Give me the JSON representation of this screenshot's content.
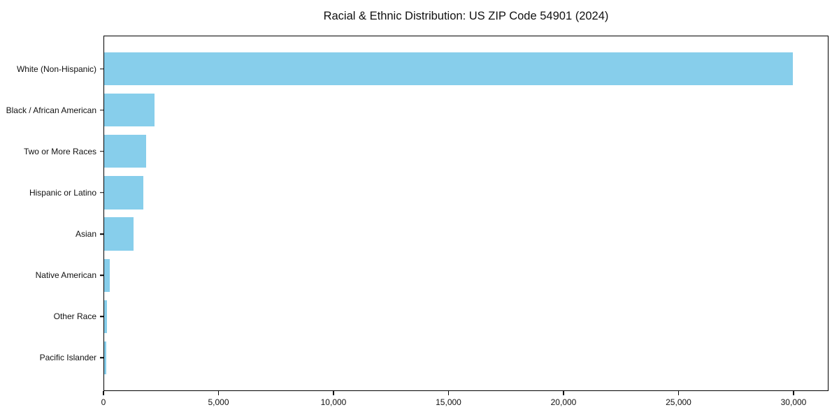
{
  "title": "Racial & Ethnic Distribution: US ZIP Code 54901 (2024)",
  "chart_data": {
    "type": "bar",
    "orientation": "horizontal",
    "title": "Racial & Ethnic Distribution: US ZIP Code 54901 (2024)",
    "categories": [
      "White (Non-Hispanic)",
      "Black / African American",
      "Two or More Races",
      "Hispanic or Latino",
      "Asian",
      "Native American",
      "Other Race",
      "Pacific Islander"
    ],
    "values": [
      30000,
      2190,
      1840,
      1700,
      1280,
      250,
      120,
      100
    ],
    "xlabel": "",
    "ylabel": "",
    "xlim": [
      0,
      31520
    ],
    "x_ticks": [
      0,
      5000,
      10000,
      15000,
      20000,
      25000,
      30000
    ],
    "x_tick_labels": [
      "0",
      "5,000",
      "10,000",
      "15,000",
      "20,000",
      "25,000",
      "30,000"
    ],
    "bar_color": "#87CEEB",
    "axis_color": "#000000",
    "background_color": "#FFFFFF",
    "grid": false,
    "legend_position": "none"
  }
}
